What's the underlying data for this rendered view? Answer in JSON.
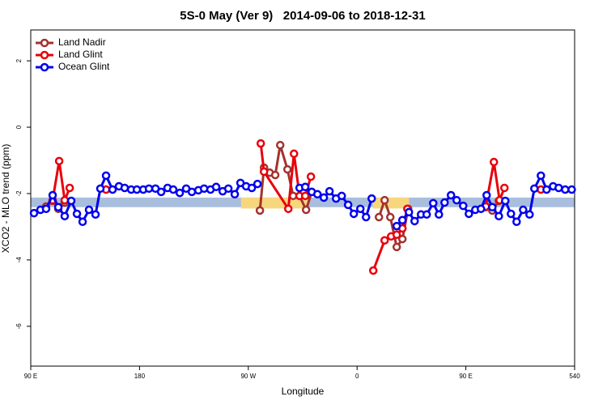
{
  "chart_data": {
    "type": "line",
    "title": "5S-0 May (Ver 9)   2014-09-06 to 2018-12-31",
    "x_label": "Longitude",
    "y_label": "XCO2 - MLO trend (ppm)",
    "xlim": [
      90,
      540
    ],
    "xticks": [
      {
        "value": 90,
        "label": "90 E"
      },
      180,
      {
        "value": 270,
        "label": "90 W"
      },
      {
        "value": 360,
        "label": "0"
      },
      {
        "value": 450,
        "label": "90 E"
      },
      540
    ],
    "ylim": [
      -7.2,
      2.93
    ],
    "yticks": [
      2,
      0,
      -2,
      -4,
      -6
    ],
    "legend": "top-left",
    "bands": [
      {
        "xmin": 90,
        "xmax": 540,
        "ymin": -2.41,
        "ymax": -2.12,
        "color": "#a9bedd"
      },
      {
        "xmin": 264,
        "xmax": 319,
        "ymin": -2.45,
        "ymax": -2.12,
        "color": "#f7d77e"
      },
      {
        "xmin": 373,
        "xmax": 403,
        "ymin": -2.45,
        "ymax": -2.12,
        "color": "#f7d77e"
      }
    ],
    "series": [
      {
        "name": "Land Nadir",
        "color": "#a3322e",
        "x": [
          102.7,
          108.1,
          112.8,
          118.1,
          null,
          279.6,
          283.0,
          287.7,
          292.3,
          296.4,
          302.4,
          307.1,
          312.4,
          317.8,
          322.5,
          null,
          378.1,
          382.8,
          387.5,
          392.8,
          397.5,
          402.2,
          null,
          466.5,
          471.9,
          477.3
        ],
        "values": [
          -2.39,
          -2.22,
          -2.46,
          -2.27,
          null,
          -2.51,
          -1.22,
          -1.37,
          -1.44,
          -0.54,
          -1.27,
          -2.07,
          -2.07,
          -2.49,
          -1.95,
          null,
          -2.71,
          -2.2,
          -2.71,
          -3.61,
          -3.37,
          -2.46,
          null,
          -2.41,
          -2.51,
          -2.22
        ]
      },
      {
        "name": "Land Glint",
        "color": "#e8000b",
        "x": [
          108.1,
          113.5,
          118.1,
          122.2,
          null,
          152.3,
          null,
          280.3,
          283.0,
          303.1,
          307.8,
          312.4,
          317.1,
          321.8,
          null,
          373.4,
          382.8,
          388.2,
          392.8,
          397.5,
          401.6,
          null,
          466.5,
          473.2,
          477.9,
          481.9,
          null,
          512.1
        ],
        "values": [
          -2.2,
          -1.02,
          -2.2,
          -1.83,
          null,
          -1.88,
          null,
          -0.49,
          -1.34,
          -2.46,
          -0.8,
          -2.07,
          -2.07,
          -1.49,
          null,
          -4.32,
          -3.41,
          -3.29,
          -3.24,
          -3.05,
          -2.46,
          null,
          -2.39,
          -1.05,
          -2.2,
          -1.83,
          null,
          -1.88
        ]
      },
      {
        "name": "Ocean Glint",
        "color": "#0000ee",
        "x": [
          92.7,
          98.0,
          102.7,
          108.1,
          112.8,
          118.1,
          123.5,
          128.2,
          132.9,
          138.2,
          143.6,
          147.6,
          152.3,
          157.7,
          163.0,
          167.7,
          173.1,
          177.8,
          183.1,
          187.8,
          193.2,
          197.9,
          203.2,
          207.9,
          213.3,
          218.6,
          223.3,
          228.7,
          233.4,
          238.7,
          243.4,
          248.8,
          253.5,
          258.8,
          263.5,
          268.2,
          272.9,
          277.6,
          null,
          312.4,
          317.1,
          322.5,
          327.2,
          332.5,
          337.2,
          342.6,
          347.3,
          352.6,
          357.3,
          362.7,
          367.4,
          372.1,
          null,
          392.8,
          397.5,
          402.9,
          407.6,
          412.9,
          417.6,
          423.0,
          427.7,
          432.4,
          437.7,
          442.4,
          447.8,
          452.5,
          457.8,
          462.5,
          467.2,
          471.9,
          477.3,
          482.6,
          487.3,
          492.0,
          497.4,
          502.7,
          506.7,
          512.1,
          516.8,
          522.2,
          526.8,
          532.2,
          537.6
        ],
        "values": [
          -2.59,
          -2.49,
          -2.46,
          -2.05,
          -2.41,
          -2.68,
          -2.22,
          -2.61,
          -2.85,
          -2.49,
          -2.63,
          -1.85,
          -1.46,
          -1.88,
          -1.78,
          -1.83,
          -1.88,
          -1.88,
          -1.88,
          -1.85,
          -1.85,
          -1.95,
          -1.83,
          -1.88,
          -1.98,
          -1.85,
          -1.95,
          -1.9,
          -1.85,
          -1.88,
          -1.8,
          -1.93,
          -1.85,
          -2.02,
          -1.68,
          -1.78,
          -1.83,
          -1.71,
          null,
          -1.83,
          -1.8,
          -1.95,
          -2.02,
          -2.12,
          -1.93,
          -2.15,
          -2.07,
          -2.34,
          -2.61,
          -2.46,
          -2.71,
          -2.15,
          null,
          -2.98,
          -2.8,
          -2.56,
          -2.83,
          -2.63,
          -2.63,
          -2.29,
          -2.63,
          -2.27,
          -2.05,
          -2.2,
          -2.37,
          -2.61,
          -2.49,
          -2.46,
          -2.05,
          -2.41,
          -2.68,
          -2.22,
          -2.61,
          -2.85,
          -2.49,
          -2.63,
          -1.85,
          -1.46,
          -1.88,
          -1.78,
          -1.83,
          -1.88,
          -1.88
        ]
      }
    ]
  }
}
